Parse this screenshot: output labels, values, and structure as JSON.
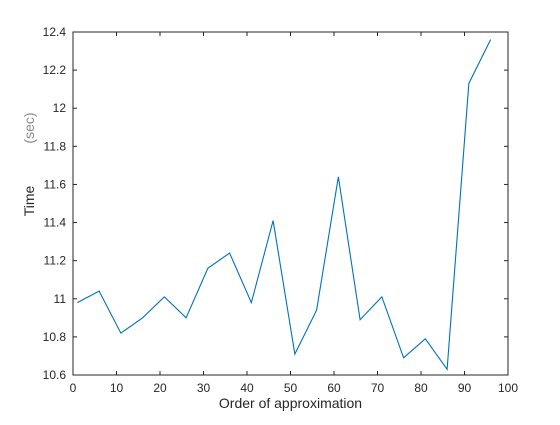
{
  "chart_data": {
    "type": "line",
    "title": "",
    "xlabel": "Order of approximation",
    "ylabel": "Time",
    "ylabel_unit": "(sec)",
    "xlim": [
      0,
      100
    ],
    "ylim": [
      10.6,
      12.4
    ],
    "x_ticks": [
      0,
      10,
      20,
      30,
      40,
      50,
      60,
      70,
      80,
      90,
      100
    ],
    "y_ticks": [
      10.6,
      10.8,
      11,
      11.2,
      11.4,
      11.6,
      11.8,
      12,
      12.2,
      12.4
    ],
    "x_tick_labels": [
      "0",
      "10",
      "20",
      "30",
      "40",
      "50",
      "60",
      "70",
      "80",
      "90",
      "100"
    ],
    "y_tick_labels": [
      "10.6",
      "10.8",
      "11",
      "11.2",
      "11.4",
      "11.6",
      "11.8",
      "12",
      "12.2",
      "12.4"
    ],
    "grid": false,
    "series": [
      {
        "color": "#0072BD",
        "x": [
          1,
          6,
          11,
          16,
          21,
          26,
          31,
          36,
          41,
          46,
          51,
          56,
          61,
          66,
          71,
          76,
          81,
          86,
          91,
          96
        ],
        "y": [
          10.98,
          11.04,
          10.82,
          10.9,
          11.01,
          10.9,
          11.16,
          11.24,
          10.98,
          11.41,
          10.71,
          10.94,
          11.64,
          10.89,
          11.01,
          10.69,
          10.79,
          10.63,
          12.13,
          12.36
        ]
      }
    ]
  }
}
